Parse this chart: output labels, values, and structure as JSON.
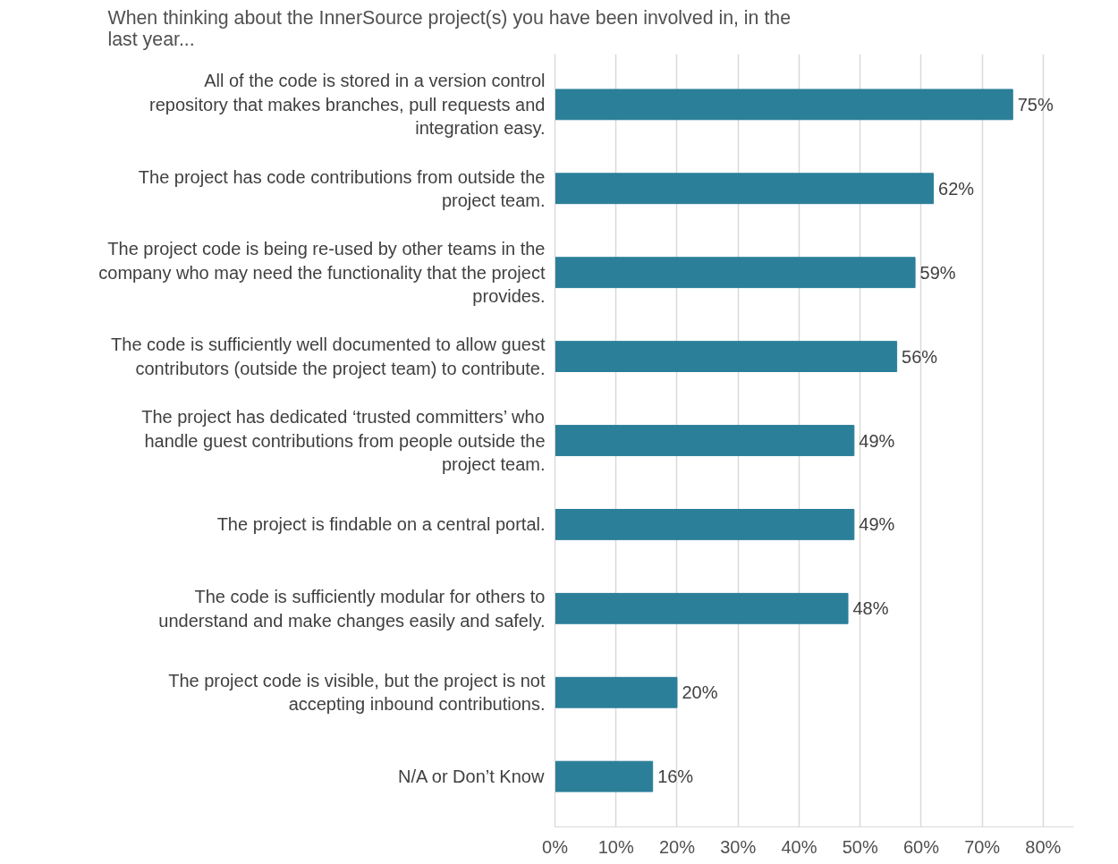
{
  "chart_data": {
    "type": "bar",
    "orientation": "horizontal",
    "title": "When thinking about the InnerSource project(s) you have been involved in, in the last year...",
    "categories": [
      "All of the code is stored in a version control repository that makes branches, pull requests and integration easy.",
      "The project has code contributions from outside the project team.",
      "The project code is being re-used by other teams in the company who may need the functionality that the project provides.",
      "The code is sufficiently well documented to allow guest contributors (outside the project team) to contribute.",
      "The project has dedicated ‘trusted committers’ who handle guest contributions from people outside the project team.",
      "The project is findable on a central portal.",
      "The code is sufficiently modular for others to understand and make changes easily and safely.",
      "The project code is visible, but the project is not accepting inbound contributions.",
      "N/A or Don’t Know"
    ],
    "values": [
      75,
      62,
      59,
      56,
      49,
      49,
      48,
      20,
      16
    ],
    "value_labels": [
      "75%",
      "62%",
      "59%",
      "56%",
      "49%",
      "49%",
      "48%",
      "20%",
      "16%"
    ],
    "color": "#2b7f99",
    "xlim": [
      0,
      85
    ],
    "xticks": [
      {
        "value": 0,
        "label": "0%"
      },
      {
        "value": 10,
        "label": "10%"
      },
      {
        "value": 20,
        "label": "20%"
      },
      {
        "value": 30,
        "label": "30%"
      },
      {
        "value": 40,
        "label": "40%"
      },
      {
        "value": 50,
        "label": "50%"
      },
      {
        "value": 60,
        "label": "60%"
      },
      {
        "value": 70,
        "label": "70%"
      },
      {
        "value": 80,
        "label": "80%"
      }
    ],
    "grid": "x"
  }
}
